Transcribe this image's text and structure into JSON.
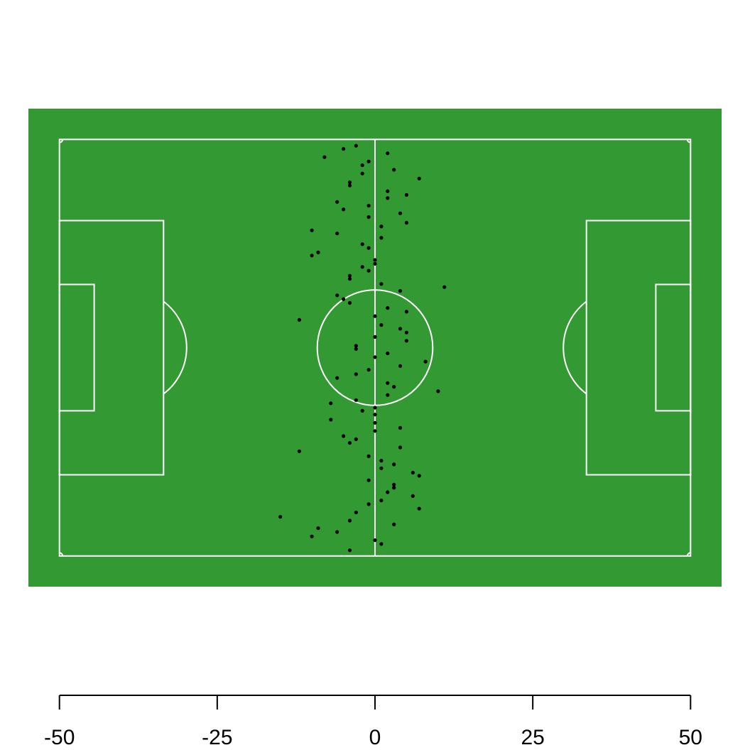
{
  "chart_data": {
    "type": "scatter",
    "title": "",
    "xlabel": "",
    "ylabel": "",
    "xlim": [
      -50,
      50
    ],
    "ylim": [
      -33,
      33
    ],
    "grid": false,
    "colors": {
      "pitch_background": "#339933",
      "pitch_lines": "#ffffff",
      "points": "#000000"
    },
    "x_ticks": [
      -50,
      -25,
      0,
      25,
      50
    ],
    "x_tick_labels": [
      "-50",
      "-25",
      "0",
      "25",
      "50"
    ],
    "series": [
      {
        "values": [
          {
            "x": -3,
            "y": 32
          },
          {
            "x": -5,
            "y": 31.5
          },
          {
            "x": -8,
            "y": 30.2
          },
          {
            "x": -1,
            "y": 29.5
          },
          {
            "x": 2,
            "y": 30.8
          },
          {
            "x": -2,
            "y": 28.9
          },
          {
            "x": -2,
            "y": 27.6
          },
          {
            "x": 3,
            "y": 28.2
          },
          {
            "x": 7,
            "y": 26.8
          },
          {
            "x": -4,
            "y": 26.2
          },
          {
            "x": -4,
            "y": 25.7
          },
          {
            "x": 2,
            "y": 24.8
          },
          {
            "x": 5,
            "y": 24.2
          },
          {
            "x": 2,
            "y": 23.7
          },
          {
            "x": -6,
            "y": 23.1
          },
          {
            "x": -1,
            "y": 22.5
          },
          {
            "x": -5,
            "y": 21.9
          },
          {
            "x": 4,
            "y": 21.3
          },
          {
            "x": -1,
            "y": 20.7
          },
          {
            "x": 5,
            "y": 19.8
          },
          {
            "x": 1,
            "y": 19.2
          },
          {
            "x": -10,
            "y": 18.6
          },
          {
            "x": -6,
            "y": 18.1
          },
          {
            "x": 1,
            "y": 17.4
          },
          {
            "x": -2,
            "y": 16.4
          },
          {
            "x": -1,
            "y": 15.8
          },
          {
            "x": -9,
            "y": 15.1
          },
          {
            "x": -10,
            "y": 14.6
          },
          {
            "x": 0,
            "y": 13.9
          },
          {
            "x": 0,
            "y": 13.3
          },
          {
            "x": -2,
            "y": 12.8
          },
          {
            "x": -1,
            "y": 12.2
          },
          {
            "x": -4,
            "y": 11.4
          },
          {
            "x": -4,
            "y": 10.9
          },
          {
            "x": 1,
            "y": 10.1
          },
          {
            "x": 11,
            "y": 9.6
          },
          {
            "x": 4,
            "y": 9.0
          },
          {
            "x": -6,
            "y": 8.3
          },
          {
            "x": -5,
            "y": 7.7
          },
          {
            "x": -4,
            "y": 7.1
          },
          {
            "x": 2,
            "y": 6.3
          },
          {
            "x": 5,
            "y": 5.7
          },
          {
            "x": 0,
            "y": 5.0
          },
          {
            "x": -12,
            "y": 4.4
          },
          {
            "x": 1,
            "y": 3.6
          },
          {
            "x": 4,
            "y": 3.0
          },
          {
            "x": 5,
            "y": 2.4
          },
          {
            "x": 0,
            "y": 1.7
          },
          {
            "x": 5,
            "y": 1.1
          },
          {
            "x": -3,
            "y": 0.3
          },
          {
            "x": -3,
            "y": -0.2
          },
          {
            "x": 2,
            "y": -0.9
          },
          {
            "x": 0,
            "y": -1.5
          },
          {
            "x": 8,
            "y": -2.2
          },
          {
            "x": 4,
            "y": -2.9
          },
          {
            "x": -1,
            "y": -3.5
          },
          {
            "x": -3,
            "y": -4.2
          },
          {
            "x": -6,
            "y": -4.8
          },
          {
            "x": 2,
            "y": -5.6
          },
          {
            "x": 3,
            "y": -6.2
          },
          {
            "x": 10,
            "y": -6.9
          },
          {
            "x": 2,
            "y": -7.5
          },
          {
            "x": -3,
            "y": -8.3
          },
          {
            "x": -7,
            "y": -8.8
          },
          {
            "x": 0,
            "y": -9.5
          },
          {
            "x": -2,
            "y": -10.0
          },
          {
            "x": 0,
            "y": -10.6
          },
          {
            "x": -7,
            "y": -11.4
          },
          {
            "x": 0,
            "y": -11.9
          },
          {
            "x": 4,
            "y": -12.7
          },
          {
            "x": 0,
            "y": -13.2
          },
          {
            "x": -5,
            "y": -14.0
          },
          {
            "x": -3,
            "y": -14.5
          },
          {
            "x": -4,
            "y": -15.1
          },
          {
            "x": 4,
            "y": -15.8
          },
          {
            "x": -12,
            "y": -16.4
          },
          {
            "x": -1,
            "y": -17.2
          },
          {
            "x": 1,
            "y": -17.9
          },
          {
            "x": 3,
            "y": -18.5
          },
          {
            "x": 1,
            "y": -19.1
          },
          {
            "x": 6,
            "y": -19.8
          },
          {
            "x": 7,
            "y": -20.3
          },
          {
            "x": -1,
            "y": -21.0
          },
          {
            "x": 3,
            "y": -21.7
          },
          {
            "x": 3,
            "y": -22.2
          },
          {
            "x": 2,
            "y": -22.9
          },
          {
            "x": 6,
            "y": -23.5
          },
          {
            "x": 1,
            "y": -24.2
          },
          {
            "x": -1,
            "y": -24.8
          },
          {
            "x": 7,
            "y": -25.5
          },
          {
            "x": -3,
            "y": -26.1
          },
          {
            "x": -4,
            "y": -27.4
          },
          {
            "x": 3,
            "y": -28.0
          },
          {
            "x": -9,
            "y": -28.6
          },
          {
            "x": -6,
            "y": -29.2
          },
          {
            "x": -10,
            "y": -29.9
          },
          {
            "x": 0,
            "y": -30.5
          },
          {
            "x": 1,
            "y": -31.1
          },
          {
            "x": -4,
            "y": -32.1
          },
          {
            "x": -15,
            "y": -26.8
          }
        ]
      }
    ]
  }
}
